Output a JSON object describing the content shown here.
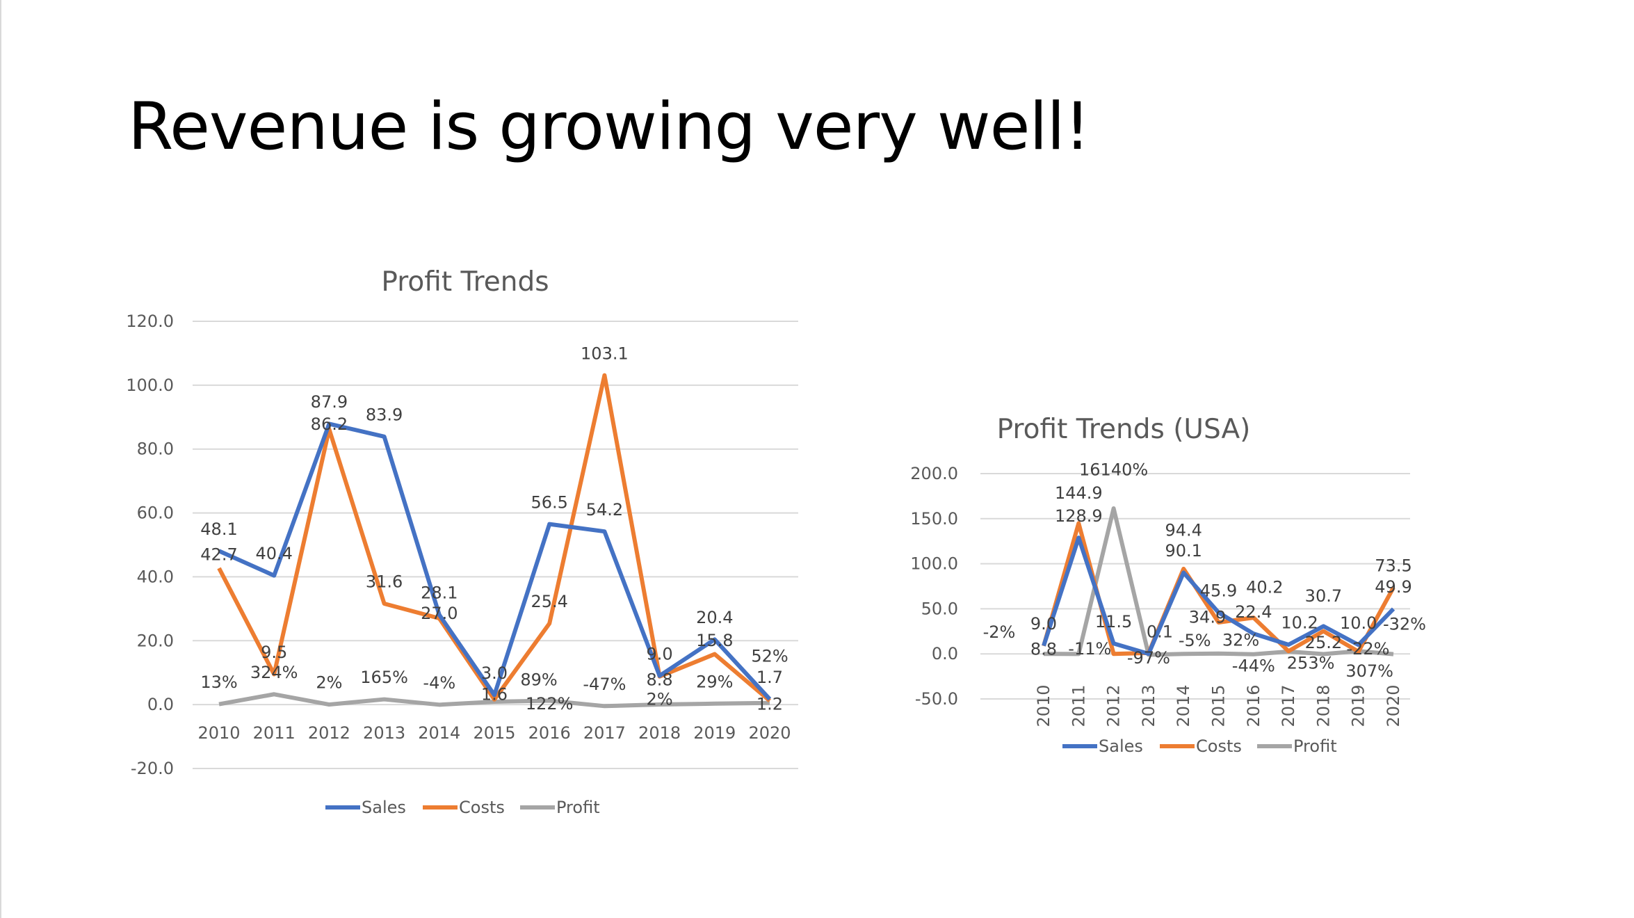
{
  "slide": {
    "title": "Revenue is growing very well!"
  },
  "chart_data": [
    {
      "type": "line",
      "title": "Profit Trends",
      "categories": [
        "2010",
        "2011",
        "2012",
        "2013",
        "2014",
        "2015",
        "2016",
        "2017",
        "2018",
        "2019",
        "2020"
      ],
      "ylim": [
        -20,
        120
      ],
      "yticks": [
        "-20.0",
        "0.0",
        "20.0",
        "40.0",
        "60.0",
        "80.0",
        "100.0",
        "120.0"
      ],
      "grid": true,
      "legend": "bottom",
      "series": [
        {
          "name": "Sales",
          "color": "#4472C4",
          "values": [
            48.1,
            40.4,
            87.9,
            83.9,
            28.1,
            3.0,
            56.5,
            54.2,
            9.0,
            20.4,
            1.7
          ],
          "labels": [
            "48.1",
            "40.4",
            "87.9",
            "83.9",
            "28.1",
            "3.0",
            "56.5",
            "54.2",
            "9.0",
            "20.4",
            "1.7"
          ]
        },
        {
          "name": "Costs",
          "color": "#ED7D31",
          "values": [
            42.7,
            9.5,
            86.2,
            31.6,
            27.0,
            1.6,
            25.4,
            103.1,
            8.8,
            15.8,
            1.2
          ],
          "labels": [
            "42.7",
            "9.5",
            "86.2",
            "31.6",
            "27.0",
            "1.6",
            "25.4",
            "103.1",
            "8.8",
            "15.8",
            "1.2"
          ]
        },
        {
          "name": "Profit",
          "color": "#A5A5A5",
          "values": [
            0.13,
            3.24,
            0.02,
            1.65,
            -0.04,
            0.89,
            1.22,
            -0.47,
            0.02,
            0.29,
            0.52
          ],
          "labels": [
            "13%",
            "324%",
            "2%",
            "165%",
            "-4%",
            "89%",
            "122%",
            "-47%",
            "2%",
            "29%",
            "52%"
          ]
        }
      ]
    },
    {
      "type": "line",
      "title": "Profit Trends (USA)",
      "categories": [
        "2010",
        "2011",
        "2012",
        "2013",
        "2014",
        "2015",
        "2016",
        "2017",
        "2018",
        "2019",
        "2020"
      ],
      "ylim": [
        -50,
        200
      ],
      "yticks": [
        "-50.0",
        "0.0",
        "50.0",
        "100.0",
        "150.0",
        "200.0"
      ],
      "grid": true,
      "legend": "bottom",
      "series": [
        {
          "name": "Sales",
          "color": "#4472C4",
          "values": [
            9.0,
            128.9,
            11.5,
            0.1,
            90.1,
            45.9,
            22.4,
            10.2,
            30.7,
            10.0,
            49.9
          ],
          "labels": [
            "9.0",
            "128.9",
            "11.5",
            "0.1",
            "90.1",
            "45.9",
            "22.4",
            "10.2",
            "30.7",
            "10.0",
            "49.9"
          ]
        },
        {
          "name": "Costs",
          "color": "#ED7D31",
          "values": [
            8.8,
            144.9,
            0.0,
            1.0,
            94.4,
            34.9,
            40.2,
            3.0,
            25.2,
            2.5,
            73.5
          ],
          "labels": [
            "8.8",
            "144.9",
            "",
            "",
            "94.4",
            "34.9",
            "40.2",
            "",
            "25.2",
            "",
            "73.5"
          ]
        },
        {
          "name": "Profit",
          "color": "#A5A5A5",
          "values": [
            -0.02,
            -0.11,
            161.4,
            -0.97,
            -0.05,
            0.32,
            -0.44,
            2.53,
            -0.22,
            3.07,
            -0.32
          ],
          "labels": [
            "-2%",
            "-11%",
            "16140%",
            "-97%",
            "-5%",
            "32%",
            "-44%",
            "253%",
            "-22%",
            "307%",
            "-32%"
          ]
        }
      ]
    }
  ]
}
